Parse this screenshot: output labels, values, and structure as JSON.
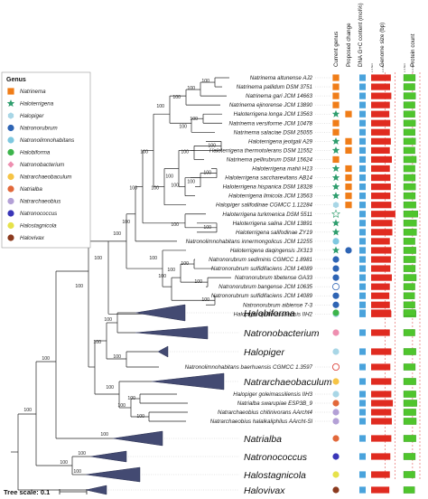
{
  "legend": {
    "title": "Genus",
    "items": [
      {
        "label": "Natrinema",
        "shape": "square",
        "color": "#f07d18"
      },
      {
        "label": "Haloterrigena",
        "shape": "star",
        "color": "#2f9e6e"
      },
      {
        "label": "Halopiger",
        "shape": "hexagon",
        "color": "#a8d6e6"
      },
      {
        "label": "Natronorubrum",
        "shape": "circle",
        "color": "#2e64b4"
      },
      {
        "label": "Natronolimnohabitans",
        "shape": "circle",
        "color": "#7ec8e0"
      },
      {
        "label": "Halobiforma",
        "shape": "circle",
        "color": "#3cb44b"
      },
      {
        "label": "Natronobacterium",
        "shape": "diamond",
        "color": "#ee8fb0"
      },
      {
        "label": "Natrarchaeobaculum",
        "shape": "circle",
        "color": "#f6c445"
      },
      {
        "label": "Natrialba",
        "shape": "circle",
        "color": "#e2683a"
      },
      {
        "label": "Natrarchaeobius",
        "shape": "circle",
        "color": "#b3a0d6"
      },
      {
        "label": "Natronococcus",
        "shape": "circle",
        "color": "#3a36b8"
      },
      {
        "label": "Halostagnicola",
        "shape": "circle",
        "color": "#e6e24a"
      },
      {
        "label": "Halovivax",
        "shape": "circle",
        "color": "#8b3a1e"
      }
    ]
  },
  "columns": [
    "Current genus",
    "Proposed change",
    "DNA G+C content (mol%)",
    "Genome size (bp)",
    "Protein count"
  ],
  "small_labels": [
    "x 4.8e3",
    "x 2.0e3",
    "x 4.8e3",
    "x 2.0e3"
  ],
  "leaves": [
    {
      "name": "Natrinema altunense AJ2",
      "cur": "#f07d18",
      "curShape": "square",
      "prop": null,
      "gc": 0.62,
      "gen": 0.78,
      "prot": 0.72
    },
    {
      "name": "Natrinema pallidum DSM 3751",
      "cur": "#f07d18",
      "curShape": "square",
      "prop": null,
      "gc": 0.62,
      "gen": 0.75,
      "prot": 0.7
    },
    {
      "name": "Natrinema gari JCM 14663",
      "cur": "#f07d18",
      "curShape": "square",
      "prop": null,
      "gc": 0.62,
      "gen": 0.8,
      "prot": 0.74
    },
    {
      "name": "Natrinema ejinorense JCM 13890",
      "cur": "#f07d18",
      "curShape": "square",
      "prop": null,
      "gc": 0.62,
      "gen": 0.74,
      "prot": 0.7
    },
    {
      "name": "Haloterrigena longa JCM 13563",
      "cur": "#2f9e6e",
      "curShape": "star",
      "prop": "#f07d18",
      "gc": 0.62,
      "gen": 0.72,
      "prot": 0.7
    },
    {
      "name": "Natrinema versiforme JCM 10478",
      "cur": "#f07d18",
      "curShape": "square",
      "prop": null,
      "gc": 0.62,
      "gen": 0.76,
      "prot": 0.73
    },
    {
      "name": "Natrinema salaciae DSM 25055",
      "cur": "#f07d18",
      "curShape": "square",
      "prop": null,
      "gc": 0.62,
      "gen": 0.74,
      "prot": 0.71
    },
    {
      "name": "Haloterrigena jeotgali A29",
      "cur": "#2f9e6e",
      "curShape": "star",
      "prop": "#f07d18",
      "gc": 0.62,
      "gen": 0.78,
      "prot": 0.74
    },
    {
      "name": "Haloterrigena thermotolerans DSM 11552",
      "cur": "#2f9e6e",
      "curShape": "star",
      "prop": "#f07d18",
      "gc": 0.62,
      "gen": 0.74,
      "prot": 0.7
    },
    {
      "name": "Natrinema pellirubrum DSM 15624",
      "cur": "#f07d18",
      "curShape": "square",
      "prop": null,
      "gc": 0.62,
      "gen": 0.82,
      "prot": 0.78
    },
    {
      "name": "Haloterrigena mahii H13",
      "cur": "#2f9e6e",
      "curShape": "star",
      "prop": "#f07d18",
      "gc": 0.62,
      "gen": 0.74,
      "prot": 0.7
    },
    {
      "name": "Haloterrigena saccharevitans AB14",
      "cur": "#2f9e6e",
      "curShape": "star",
      "prop": "#f07d18",
      "gc": 0.62,
      "gen": 0.76,
      "prot": 0.72
    },
    {
      "name": "Haloterrigena hispanica DSM 18328",
      "cur": "#2f9e6e",
      "curShape": "star",
      "prop": "#f07d18",
      "gc": 0.62,
      "gen": 0.78,
      "prot": 0.74
    },
    {
      "name": "Haloterrigena limicola JCM 13563",
      "cur": "#2f9e6e",
      "curShape": "star",
      "prop": "#f07d18",
      "gc": 0.62,
      "gen": 0.76,
      "prot": 0.72
    },
    {
      "name": "Halopiger salifodinae CGMCC 1.12284",
      "cur": "#a8d6e6",
      "curShape": "hexagon",
      "prop": "#f07d18",
      "gc": 0.62,
      "gen": 0.8,
      "prot": 0.76
    },
    {
      "name": "Haloterrigena turkmenica DSM 5511",
      "cur": "#ffffff",
      "curShape": "star-open",
      "prop": null,
      "gc": 0.62,
      "gen": 0.96,
      "prot": 0.88
    },
    {
      "name": "Haloterrigena salina JCM 13891",
      "cur": "#2f9e6e",
      "curShape": "star",
      "prop": null,
      "gc": 0.62,
      "gen": 0.84,
      "prot": 0.8
    },
    {
      "name": "Haloterrigena salifodinae ZY19",
      "cur": "#2f9e6e",
      "curShape": "star",
      "prop": null,
      "gc": 0.62,
      "gen": 0.84,
      "prot": 0.8
    },
    {
      "name": "Natronolimnohabitans innermongolicus JCM 12255",
      "cur": "#7ec8e0",
      "curShape": "circle",
      "prop": null,
      "gc": 0.62,
      "gen": 0.74,
      "prot": 0.7
    },
    {
      "name": "Haloterrigena daqingensis JX313",
      "cur": "#2f9e6e",
      "curShape": "star",
      "prop": "#2e64b4",
      "gc": 0.62,
      "gen": 0.8,
      "prot": 0.76
    },
    {
      "name": "Natronorubrum sediminis CGMCC 1.8981",
      "cur": "#2e64b4",
      "curShape": "circle",
      "prop": null,
      "gc": 0.62,
      "gen": 0.78,
      "prot": 0.74
    },
    {
      "name": "Natronorubrum sulfidifaciens JCM 14089",
      "cur": "#2e64b4",
      "curShape": "circle",
      "prop": null,
      "gc": 0.62,
      "gen": 0.76,
      "prot": 0.72
    },
    {
      "name": "Natronorubrum tibetense GA33",
      "cur": "#2e64b4",
      "curShape": "circle",
      "prop": null,
      "gc": 0.62,
      "gen": 0.82,
      "prot": 0.78
    },
    {
      "name": "Natronorubrum bangense JCM 10635",
      "cur": "#ffffff",
      "curShape": "circle-open",
      "prop": null,
      "gc": 0.62,
      "gen": 0.74,
      "prot": 0.7
    },
    {
      "name": "Natronorubrum sulfidifaciens JCM 14089",
      "cur": "#2e64b4",
      "curShape": "circle",
      "prop": null,
      "gc": 0.62,
      "gen": 0.72,
      "prot": 0.68
    },
    {
      "name": "Natronorubrum aibiense 7-3",
      "cur": "#2e64b4",
      "curShape": "circle",
      "prop": null,
      "gc": 0.62,
      "gen": 0.74,
      "prot": 0.7
    },
    {
      "name": "Halopiger djelfimassiliensis IIH2",
      "cur": "#a8d6e6",
      "curShape": "circle",
      "prop": null,
      "gc": 0.62,
      "gen": 0.8,
      "prot": 0.76
    }
  ],
  "clades": [
    {
      "name": "Halobiforma",
      "cur": "#3cb44b",
      "gen": 0.78,
      "prot": 0.74
    },
    {
      "name": "Natronobacterium",
      "cur": "#ee8fb0",
      "gen": 0.74,
      "prot": 0.7
    },
    {
      "name": "Halopiger",
      "cur": "#a8d6e6",
      "gen": 0.8,
      "prot": 0.76
    }
  ],
  "leaves2": [
    {
      "name": "Natronolimnohabitans baerhuensis CGMCC 1.3597",
      "cur": "#ffffff",
      "curShape": "circle-open-red",
      "gen": 0.76,
      "prot": 0.72
    }
  ],
  "clade2": {
    "name": "Natrarchaeobaculum",
    "cur": "#f6c445",
    "gen": 0.8,
    "prot": 0.76
  },
  "leaves3": [
    {
      "name": "Halopiger goleimassiliensis IIH3",
      "cur": "#a8d6e6",
      "curShape": "circle",
      "gen": 0.8,
      "prot": 0.76
    },
    {
      "name": "Natrialba swarupiae ESP3B_9",
      "cur": "#e2683a",
      "curShape": "circle",
      "gen": 0.86,
      "prot": 0.82
    },
    {
      "name": "Natrarchaeobius chitinivorans AArcht4",
      "cur": "#b3a0d6",
      "curShape": "circle",
      "gen": 0.8,
      "prot": 0.76
    },
    {
      "name": "Natrarchaeobius halalkaliphilus AArcht-Sl",
      "cur": "#b3a0d6",
      "curShape": "circle",
      "gen": 0.82,
      "prot": 0.78
    }
  ],
  "clades3": [
    {
      "name": "Natrialba",
      "cur": "#e2683a",
      "gen": 0.8,
      "prot": 0.76
    },
    {
      "name": "Natronococcus",
      "cur": "#3a36b8",
      "gen": 0.76,
      "prot": 0.72
    },
    {
      "name": "Halostagnicola",
      "cur": "#e6e24a",
      "gen": 0.74,
      "prot": 0.7
    },
    {
      "name": "Halovivax",
      "cur": "#8b3a1e",
      "gen": 0.72,
      "prot": 0.68
    }
  ],
  "bootstraps": [
    "100",
    "100",
    "100",
    "100",
    "100",
    "100",
    "100",
    "100",
    "100",
    "100",
    "100",
    "100",
    "100",
    "100",
    "100",
    "100",
    "100",
    "100",
    "100",
    "100",
    "100",
    "100",
    "100",
    "100",
    "100",
    "100",
    "100",
    "100",
    "100",
    "100",
    "100",
    "100",
    "100",
    "100"
  ],
  "scale": {
    "label": "Tree scale: 0.1"
  }
}
